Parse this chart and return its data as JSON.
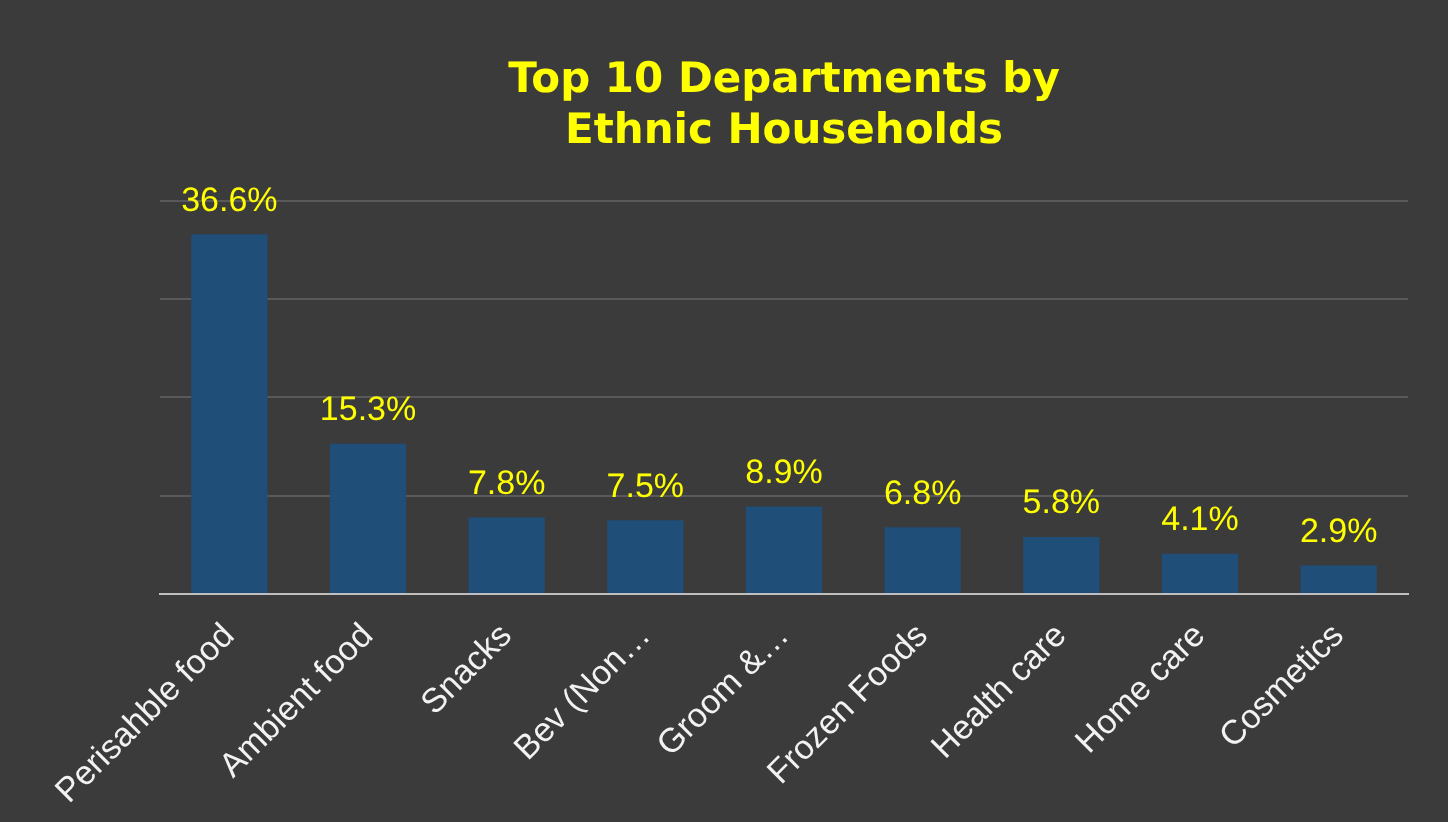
{
  "chart_data": {
    "type": "bar",
    "title": "Top 10 Departments by Ethnic Households",
    "categories": [
      "Perisahble food",
      "Ambient food",
      "Snacks",
      "Bev (Non…",
      "Groom &…",
      "Frozen Foods",
      "Health care",
      "Home care",
      "Cosmetics"
    ],
    "values": [
      36.6,
      15.3,
      7.8,
      7.5,
      8.9,
      6.8,
      5.8,
      4.1,
      2.9
    ],
    "value_labels": [
      "36.6%",
      "15.3%",
      "7.8%",
      "7.5%",
      "8.9%",
      "6.8%",
      "5.8%",
      "4.1%",
      "2.9%"
    ],
    "color": "#1f4e79",
    "ylim": [
      0,
      40
    ],
    "yticks": [
      {
        "value": 0,
        "label": null
      },
      {
        "value": 10,
        "label": null
      },
      {
        "value": 20,
        "label": null
      },
      {
        "value": 30,
        "label": null
      },
      {
        "value": 40,
        "label": null
      }
    ],
    "grid": "y",
    "legend": false,
    "tick_labels": "x"
  }
}
